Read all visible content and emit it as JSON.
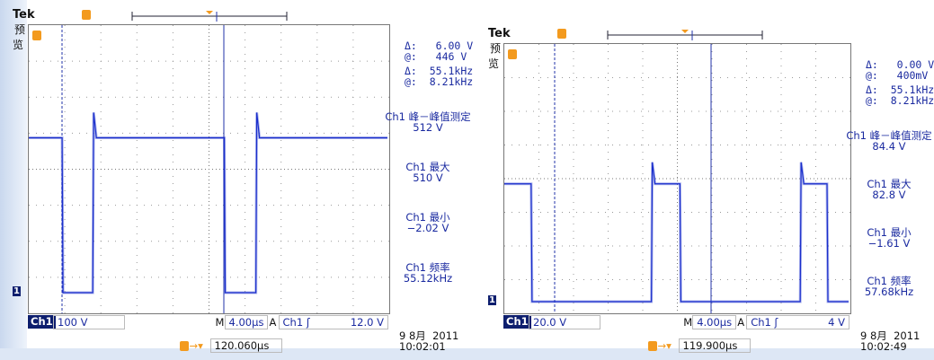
{
  "colors": {
    "trace": "#1a2ecc",
    "trigger": "#f39a1e",
    "text": "#1a2aa0"
  },
  "panels": [
    {
      "brand": "Tek",
      "mode": "预览",
      "cursor": {
        "dv_label": "Δ:",
        "dv": "6.00 V",
        "av_label": "@:",
        "av": "446 V",
        "df_label": "Δ:",
        "df": "55.1kHz",
        "af_label": "@:",
        "af": "8.21kHz"
      },
      "measurements": [
        {
          "label": "Ch1 峰－峰值测定",
          "value": "512 V"
        },
        {
          "label": "Ch1 最大",
          "value": "510 V"
        },
        {
          "label": "Ch1 最小",
          "value": "−2.02 V"
        },
        {
          "label": "Ch1 频率",
          "value": "55.12kHz"
        }
      ],
      "channel": "Ch1",
      "vdiv": "100 V",
      "m_label": "M",
      "timebase": "4.00µs",
      "a_label": "A",
      "trig_src": "Ch1",
      "trig_slope": "ʃ",
      "trig_level": "12.0 V",
      "date": "9 8月  2011",
      "time": "10:02:01",
      "position": "120.060µs",
      "trace": {
        "volts_per_div": 100,
        "us_per_div": 4,
        "high": 430,
        "low": 0,
        "spike": 500,
        "edges_us": [
          3.7,
          7.1,
          21.7,
          25.2
        ],
        "start_high": true
      }
    },
    {
      "brand": "Tek",
      "mode": "预览",
      "cursor": {
        "dv_label": "Δ:",
        "dv": "0.00 V",
        "av_label": "@:",
        "av": "400mV",
        "df_label": "Δ:",
        "df": "55.1kHz",
        "af_label": "@:",
        "af": "8.21kHz"
      },
      "measurements": [
        {
          "label": "Ch1 峰－峰值测定",
          "value": "84.4 V"
        },
        {
          "label": "Ch1 最大",
          "value": "82.8 V"
        },
        {
          "label": "Ch1 最小",
          "value": "−1.61 V"
        },
        {
          "label": "Ch1 频率",
          "value": "57.68kHz"
        }
      ],
      "channel": "Ch1",
      "vdiv": "20.0 V",
      "m_label": "M",
      "timebase": "4.00µs",
      "a_label": "A",
      "trig_src": "Ch1",
      "trig_slope": "ʃ",
      "trig_level": "4 V",
      "date": "9 8月  2011",
      "time": "10:02:49",
      "position": "119.900µs",
      "trace": {
        "volts_per_div": 20,
        "us_per_div": 4,
        "high": 70,
        "low": 0,
        "spike": 82.8,
        "edges_us": [
          3.1,
          17.0,
          20.3,
          34.2,
          37.3
        ],
        "start_high": true
      }
    }
  ]
}
